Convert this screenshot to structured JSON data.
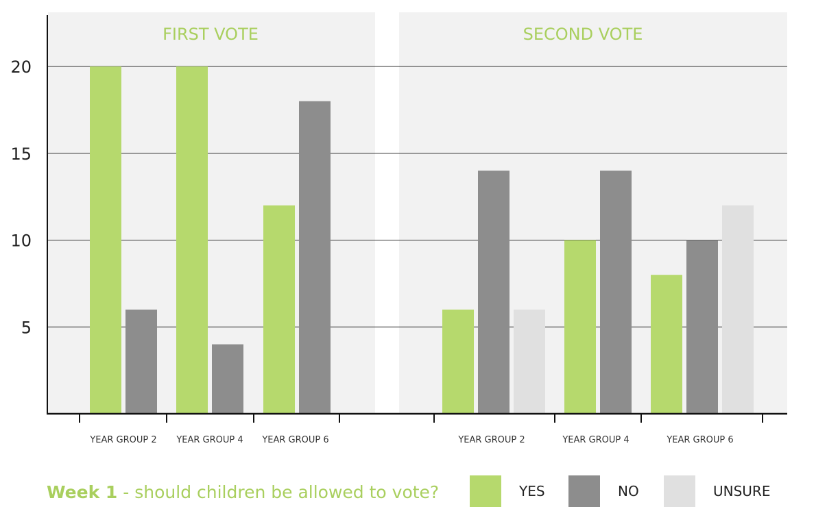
{
  "chart_data": {
    "type": "bar",
    "caption_bold": "Week 1",
    "caption_rest": " - should children be allowed to vote?",
    "yticks": [
      5,
      10,
      15,
      20
    ],
    "ylim": [
      0,
      23
    ],
    "grid": true,
    "legend": [
      {
        "label": "YES",
        "color": "#b6d96d"
      },
      {
        "label": "NO",
        "color": "#8d8d8d"
      },
      {
        "label": "UNSURE",
        "color": "#e0e0e0"
      }
    ],
    "panels": [
      {
        "title": "FIRST VOTE",
        "categories": [
          "YEAR GROUP 2",
          "YEAR GROUP 4",
          "YEAR GROUP 6"
        ],
        "series": [
          {
            "name": "YES",
            "values": [
              20,
              20,
              12
            ]
          },
          {
            "name": "NO",
            "values": [
              6,
              4,
              18
            ]
          }
        ]
      },
      {
        "title": "SECOND VOTE",
        "categories": [
          "YEAR GROUP 2",
          "YEAR GROUP 4",
          "YEAR GROUP 6"
        ],
        "series": [
          {
            "name": "YES",
            "values": [
              6,
              10,
              8
            ]
          },
          {
            "name": "NO",
            "values": [
              14,
              14,
              10
            ]
          },
          {
            "name": "UNSURE",
            "values": [
              6,
              0,
              12
            ]
          }
        ]
      }
    ]
  }
}
